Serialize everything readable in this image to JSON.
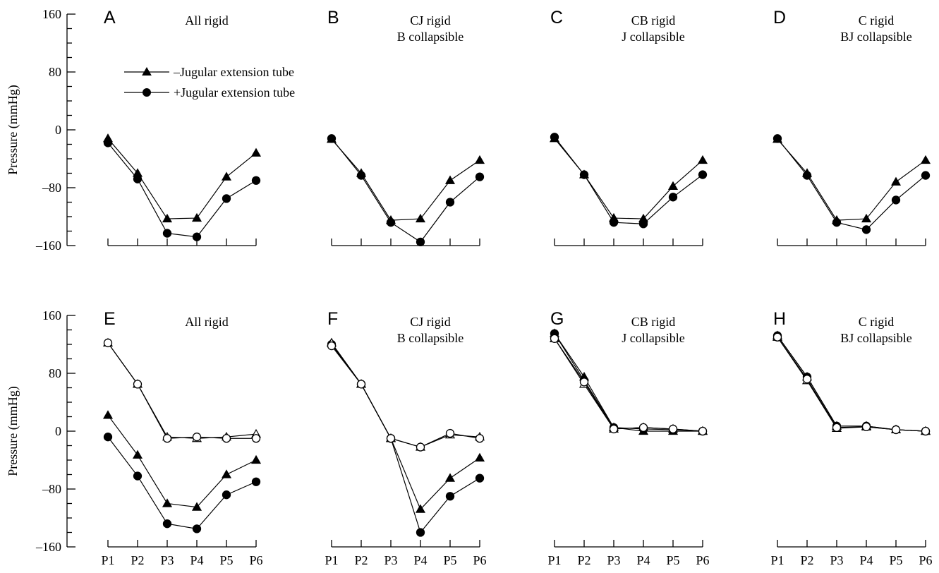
{
  "chart_data": {
    "type": "line",
    "categories": [
      "P1",
      "P2",
      "P3",
      "P4",
      "P5",
      "P6"
    ],
    "ylabel": "Pressure (mmHg)",
    "ylim": [
      -160,
      160
    ],
    "yticks": [
      160,
      80,
      0,
      -80,
      -160
    ],
    "yticklabels": [
      "160",
      "80",
      "0",
      "–80",
      "–160"
    ],
    "grid": false,
    "legend": {
      "placement": "top-left of panel A",
      "entries": [
        {
          "label": "–Jugular extension tube",
          "marker": "triangle"
        },
        {
          "label": "+Jugular extension tube",
          "marker": "circle"
        }
      ]
    },
    "colors": {
      "line": "#000000",
      "background": "#ffffff"
    },
    "panels": [
      {
        "letter": "A",
        "title": [
          "All rigid"
        ],
        "row": 0,
        "col": 0,
        "series": [
          {
            "marker": "triangle",
            "fill": "filled",
            "values": [
              -12,
              -60,
              -123,
              -122,
              -65,
              -32
            ]
          },
          {
            "marker": "circle",
            "fill": "filled",
            "values": [
              -18,
              -68,
              -143,
              -148,
              -95,
              -70
            ]
          }
        ]
      },
      {
        "letter": "B",
        "title": [
          "CJ rigid",
          "B collapsible"
        ],
        "row": 0,
        "col": 1,
        "series": [
          {
            "marker": "triangle",
            "fill": "filled",
            "values": [
              -13,
              -60,
              -125,
              -123,
              -70,
              -42
            ]
          },
          {
            "marker": "circle",
            "fill": "filled",
            "values": [
              -12,
              -63,
              -128,
              -155,
              -100,
              -65
            ]
          }
        ]
      },
      {
        "letter": "C",
        "title": [
          "CB rigid",
          "J collapsible"
        ],
        "row": 0,
        "col": 2,
        "series": [
          {
            "marker": "triangle",
            "fill": "filled",
            "values": [
              -12,
              -62,
              -122,
              -123,
              -78,
              -42
            ]
          },
          {
            "marker": "circle",
            "fill": "filled",
            "values": [
              -10,
              -62,
              -128,
              -130,
              -93,
              -62
            ]
          }
        ]
      },
      {
        "letter": "D",
        "title": [
          "C rigid",
          "BJ collapsible"
        ],
        "row": 0,
        "col": 3,
        "series": [
          {
            "marker": "triangle",
            "fill": "filled",
            "values": [
              -13,
              -60,
              -125,
              -123,
              -72,
              -42
            ]
          },
          {
            "marker": "circle",
            "fill": "filled",
            "values": [
              -12,
              -63,
              -128,
              -138,
              -97,
              -63
            ]
          }
        ]
      },
      {
        "letter": "E",
        "title": [
          "All rigid"
        ],
        "row": 1,
        "col": 0,
        "series": [
          {
            "marker": "triangle",
            "fill": "filled",
            "values": [
              22,
              -33,
              -100,
              -105,
              -60,
              -40
            ]
          },
          {
            "marker": "circle",
            "fill": "filled",
            "values": [
              -8,
              -62,
              -128,
              -135,
              -88,
              -70
            ]
          },
          {
            "marker": "triangle",
            "fill": "open",
            "values": [
              122,
              65,
              -8,
              -10,
              -8,
              -4
            ]
          },
          {
            "marker": "circle",
            "fill": "open",
            "values": [
              122,
              65,
              -10,
              -8,
              -10,
              -10
            ]
          }
        ]
      },
      {
        "letter": "F",
        "title": [
          "CJ rigid",
          "B collapsible"
        ],
        "row": 1,
        "col": 1,
        "series": [
          {
            "marker": "triangle",
            "fill": "filled",
            "values": [
              122,
              65,
              -10,
              -108,
              -65,
              -37
            ]
          },
          {
            "marker": "circle",
            "fill": "filled",
            "values": [
              120,
              65,
              -10,
              -140,
              -90,
              -65
            ]
          },
          {
            "marker": "triangle",
            "fill": "open",
            "values": [
              122,
              65,
              -10,
              -22,
              -5,
              -8
            ]
          },
          {
            "marker": "circle",
            "fill": "open",
            "values": [
              118,
              65,
              -10,
              -22,
              -3,
              -10
            ]
          }
        ]
      },
      {
        "letter": "G",
        "title": [
          "CB rigid",
          "J collapsible"
        ],
        "row": 1,
        "col": 2,
        "series": [
          {
            "marker": "triangle",
            "fill": "filled",
            "values": [
              135,
              75,
              5,
              0,
              0,
              0
            ]
          },
          {
            "marker": "circle",
            "fill": "filled",
            "values": [
              135,
              70,
              5,
              3,
              2,
              0
            ]
          },
          {
            "marker": "triangle",
            "fill": "open",
            "values": [
              128,
              65,
              3,
              5,
              3,
              0
            ]
          },
          {
            "marker": "circle",
            "fill": "open",
            "values": [
              128,
              68,
              3,
              5,
              3,
              0
            ]
          }
        ]
      },
      {
        "letter": "H",
        "title": [
          "C rigid",
          "BJ collapsible"
        ],
        "row": 1,
        "col": 3,
        "series": [
          {
            "marker": "triangle",
            "fill": "filled",
            "values": [
              132,
              75,
              7,
              7,
              2,
              0
            ]
          },
          {
            "marker": "circle",
            "fill": "filled",
            "values": [
              132,
              75,
              7,
              7,
              2,
              0
            ]
          },
          {
            "marker": "triangle",
            "fill": "open",
            "values": [
              130,
              70,
              4,
              6,
              2,
              0
            ]
          },
          {
            "marker": "circle",
            "fill": "open",
            "values": [
              130,
              72,
              5,
              6,
              2,
              0
            ]
          }
        ]
      }
    ]
  }
}
